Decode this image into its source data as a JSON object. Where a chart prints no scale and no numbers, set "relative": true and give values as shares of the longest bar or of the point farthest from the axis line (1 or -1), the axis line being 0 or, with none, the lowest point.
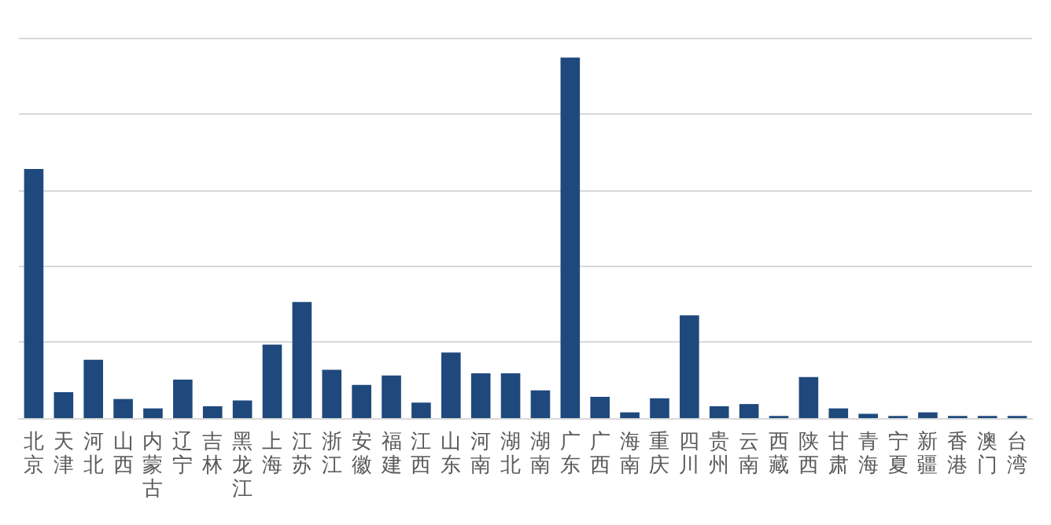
{
  "chart_data": {
    "type": "bar",
    "relative": true,
    "grid": "y",
    "categories": [
      "北京",
      "天津",
      "河北",
      "山西",
      "内蒙古",
      "辽宁",
      "吉林",
      "黑龙江",
      "上海",
      "江苏",
      "浙江",
      "安徽",
      "福建",
      "江西",
      "山东",
      "河南",
      "湖北",
      "湖南",
      "广东",
      "广西",
      "海南",
      "重庆",
      "四川",
      "贵州",
      "云南",
      "西藏",
      "陕西",
      "甘肃",
      "青海",
      "宁夏",
      "新疆",
      "香港",
      "澳门",
      "台湾"
    ],
    "series": [
      {
        "color": "#1f497d",
        "values": [
          0.691,
          0.072,
          0.162,
          0.053,
          0.027,
          0.107,
          0.033,
          0.049,
          0.204,
          0.322,
          0.134,
          0.092,
          0.118,
          0.043,
          0.182,
          0.124,
          0.124,
          0.077,
          1,
          0.059,
          0.016,
          0.055,
          0.285,
          0.033,
          0.039,
          0.006,
          0.114,
          0.027,
          0.012,
          0.006,
          0.016,
          0.006,
          0.006,
          0.006
        ]
      }
    ]
  }
}
